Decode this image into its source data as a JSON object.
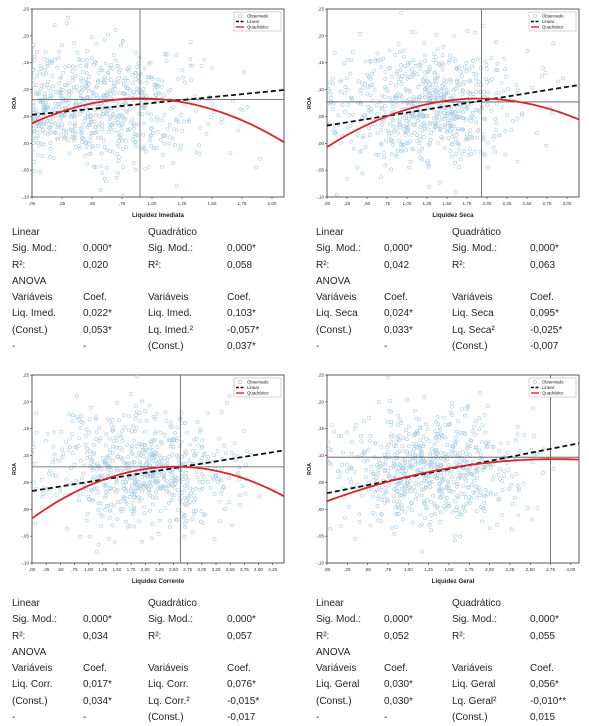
{
  "legend_labels": [
    "Observado",
    "Linear",
    "Quadrático"
  ],
  "colors": {
    "points": "#a9cce3",
    "linear": "#111111",
    "quadratic": "#d9262b",
    "ref": "#555555"
  },
  "charts": [
    {
      "chart_data": {
        "type": "scatter",
        "title": "",
        "xlabel": "Liquidez Imediata",
        "ylabel": "ROA",
        "xlim": [
          0,
          2.1
        ],
        "ylim": [
          -0.1,
          0.25
        ],
        "xticks": [
          0,
          0.25,
          0.5,
          0.75,
          1,
          1.25,
          1.5,
          1.75,
          2
        ],
        "xticklabels": [
          ",00",
          ",25",
          ",50",
          ",75",
          "1,00",
          "1,25",
          "1,50",
          "1,75",
          "2,00"
        ],
        "yticks": [
          -0.1,
          -0.05,
          0,
          0.05,
          0.1,
          0.15,
          0.2,
          0.25
        ],
        "yticklabels": [
          "-,10",
          "-,05",
          ",00",
          ",05",
          ",10",
          ",15",
          ",20",
          ",25"
        ],
        "cloud": {
          "x_center": 0.55,
          "x_spread": 0.45,
          "y_center": 0.07,
          "y_spread": 0.055,
          "n": 700
        },
        "ref_lines": {
          "x": 0.9,
          "y": 0.0815
        },
        "linear": {
          "intercept": 0.053,
          "slope": 0.022
        },
        "quadratic": {
          "constant": 0.037,
          "b1": 0.103,
          "b2": -0.057
        },
        "legend_position": "top-right"
      },
      "table": {
        "linear_title": "Linear",
        "quad_title": "Quadrático",
        "sig_label": "Sig. Mod.:",
        "r2_label": "R²:",
        "lin_sig": "0,000*",
        "lin_r2": "0,020",
        "quad_sig": "0,000*",
        "quad_r2": "0,058",
        "anova": "ANOVA",
        "var_header": "Variáveis",
        "coef_header": "Coef.",
        "lin_rows": [
          [
            "Liq. Imed.",
            "0,022*"
          ],
          [
            "(Const.)",
            "0,053*"
          ],
          [
            "-",
            "-"
          ]
        ],
        "quad_rows": [
          [
            "Liq. Imed.",
            "0,103*"
          ],
          [
            "Lq. Imed.²",
            "-0,057*"
          ],
          [
            "(Const.)",
            "0,037*"
          ]
        ]
      }
    },
    {
      "chart_data": {
        "type": "scatter",
        "title": "",
        "xlabel": "Liquidez Seca",
        "ylabel": "ROA",
        "xlim": [
          0,
          3.15
        ],
        "ylim": [
          -0.1,
          0.25
        ],
        "xticks": [
          0,
          0.25,
          0.5,
          0.75,
          1,
          1.25,
          1.5,
          1.75,
          2,
          2.25,
          2.5,
          2.75,
          3
        ],
        "xticklabels": [
          ",00",
          ",25",
          ",50",
          ",75",
          "1,00",
          "1,25",
          "1,50",
          "1,75",
          "2,00",
          "2,25",
          "2,50",
          "2,75",
          "3,00"
        ],
        "yticks": [
          -0.1,
          -0.05,
          0,
          0.05,
          0.1,
          0.15,
          0.2,
          0.25
        ],
        "yticklabels": [
          "-,10",
          "-,05",
          ",00",
          ",05",
          ",10",
          ",15",
          ",20",
          ",25"
        ],
        "cloud": {
          "x_center": 1.2,
          "x_spread": 0.6,
          "y_center": 0.07,
          "y_spread": 0.055,
          "n": 700
        },
        "ref_lines": {
          "x": 1.93,
          "y": 0.077
        },
        "linear": {
          "intercept": 0.033,
          "slope": 0.024
        },
        "quadratic": {
          "constant": -0.007,
          "b1": 0.095,
          "b2": -0.025
        },
        "legend_position": "top-right"
      },
      "table": {
        "linear_title": "Linear",
        "quad_title": "Quadrático",
        "sig_label": "Sig. Mod.:",
        "r2_label": "R²:",
        "lin_sig": "0,000*",
        "lin_r2": "0,042",
        "quad_sig": "0,000*",
        "quad_r2": "0,063",
        "anova": "ANOVA",
        "var_header": "Variáveis",
        "coef_header": "Coef.",
        "lin_rows": [
          [
            "Liq. Seca",
            "0,024*"
          ],
          [
            "(Const.)",
            "0,033*"
          ],
          [
            "-",
            "-"
          ]
        ],
        "quad_rows": [
          [
            "Liq. Seca",
            "0,095*"
          ],
          [
            "Lq. Seca²",
            "-0,025*"
          ],
          [
            "(Const.)",
            "-0,007"
          ]
        ]
      }
    },
    {
      "chart_data": {
        "type": "scatter",
        "title": "",
        "xlabel": "Liquidez Corrente",
        "ylabel": "ROA",
        "xlim": [
          0,
          4.45
        ],
        "ylim": [
          -0.1,
          0.25
        ],
        "xticks": [
          0,
          0.25,
          0.5,
          0.75,
          1,
          1.25,
          1.5,
          1.75,
          2,
          2.25,
          2.5,
          2.75,
          3,
          3.25,
          3.5,
          3.75,
          4,
          4.25
        ],
        "xticklabels": [
          ",00",
          ",25",
          ",50",
          ",75",
          "1,00",
          "1,25",
          "1,50",
          "1,75",
          "2,00",
          "2,25",
          "2,50",
          "2,75",
          "3,00",
          "3,25",
          "3,50",
          "3,75",
          "4,00",
          "4,25"
        ],
        "yticks": [
          -0.1,
          -0.05,
          0,
          0.05,
          0.1,
          0.15,
          0.2,
          0.25
        ],
        "yticklabels": [
          "-,10",
          "-,05",
          ",00",
          ",05",
          ",10",
          ",15",
          ",20",
          ",25"
        ],
        "cloud": {
          "x_center": 1.9,
          "x_spread": 0.85,
          "y_center": 0.07,
          "y_spread": 0.055,
          "n": 700
        },
        "ref_lines": {
          "x": 2.62,
          "y": 0.079
        },
        "linear": {
          "intercept": 0.034,
          "slope": 0.017
        },
        "quadratic": {
          "constant": -0.017,
          "b1": 0.076,
          "b2": -0.015
        },
        "legend_position": "top-right"
      },
      "table": {
        "linear_title": "Linear",
        "quad_title": "Quadrático",
        "sig_label": "Sig. Mod.:",
        "r2_label": "R²:",
        "lin_sig": "0,000*",
        "lin_r2": "0,034",
        "quad_sig": "0,000*",
        "quad_r2": "0,057",
        "anova": "ANOVA",
        "var_header": "Variáveis",
        "coef_header": "Coef.",
        "lin_rows": [
          [
            "Liq. Corr.",
            "0,017*"
          ],
          [
            "(Const.)",
            "0,034*"
          ],
          [
            "-",
            "-"
          ]
        ],
        "quad_rows": [
          [
            "Liq. Corr.",
            "0,076*"
          ],
          [
            "Lq. Corr.²",
            "-0,015*"
          ],
          [
            "(Const.)",
            "-0,017"
          ]
        ]
      }
    },
    {
      "chart_data": {
        "type": "scatter",
        "title": "",
        "xlabel": "Liquidez Geral",
        "ylabel": "ROA",
        "xlim": [
          0,
          3.1
        ],
        "ylim": [
          -0.1,
          0.25
        ],
        "xticks": [
          0,
          0.25,
          0.5,
          0.75,
          1,
          1.25,
          1.5,
          1.75,
          2,
          2.25,
          2.5,
          2.75,
          3
        ],
        "xticklabels": [
          ",00",
          ",25",
          ",50",
          ",75",
          "1,00",
          "1,25",
          "1,50",
          "1,75",
          "2,00",
          "2,25",
          "2,50",
          "2,75",
          "3,00"
        ],
        "yticks": [
          -0.1,
          -0.05,
          0,
          0.05,
          0.1,
          0.15,
          0.2,
          0.25
        ],
        "yticklabels": [
          "-,10",
          "-,05",
          ",00",
          ",05",
          ",10",
          ",15",
          ",20",
          ",25"
        ],
        "cloud": {
          "x_center": 1.25,
          "x_spread": 0.55,
          "y_center": 0.07,
          "y_spread": 0.055,
          "n": 700
        },
        "ref_lines": {
          "x": 2.75,
          "y": 0.097
        },
        "linear": {
          "intercept": 0.03,
          "slope": 0.03
        },
        "quadratic": {
          "constant": 0.015,
          "b1": 0.056,
          "b2": -0.01
        },
        "legend_position": "top-right"
      },
      "table": {
        "linear_title": "Linear",
        "quad_title": "Quadrático",
        "sig_label": "Sig. Mod.:",
        "r2_label": "R²:",
        "lin_sig": "0,000*",
        "lin_r2": "0,052",
        "quad_sig": "0,000*",
        "quad_r2": "0,055",
        "anova": "ANOVA",
        "var_header": "Variáveis",
        "coef_header": "Coef.",
        "lin_rows": [
          [
            "Liq. Geral",
            "0,030*"
          ],
          [
            "(Const.)",
            "0,030*"
          ],
          [
            "-",
            "-"
          ]
        ],
        "quad_rows": [
          [
            "Liq. Geral",
            "0,056*"
          ],
          [
            "Lq. Geral²",
            "-0,010**"
          ],
          [
            "(Const.)",
            "0,015"
          ]
        ]
      }
    }
  ]
}
